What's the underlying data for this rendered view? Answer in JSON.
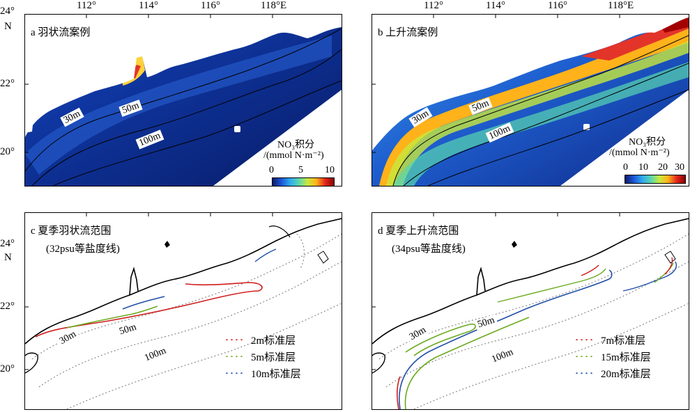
{
  "lon_ticks": [
    "112°",
    "114°",
    "116°",
    "118°E"
  ],
  "lat_ticks": [
    "24°",
    "22°",
    "20°"
  ],
  "north_label": "N",
  "panels": {
    "a": {
      "title": "a  羽状流案例",
      "cbar_title_1": "NO₃积分",
      "cbar_title_2": "/(mmol N·m⁻²)",
      "cbar_ticks": [
        "0",
        "5",
        "10"
      ],
      "contours": [
        "30m",
        "50m",
        "100m"
      ]
    },
    "b": {
      "title": "b  上升流案例",
      "cbar_title_1": "NO₃积分",
      "cbar_title_2": "/(mmol N·m⁻²)",
      "cbar_ticks": [
        "0",
        "10",
        "20",
        "30"
      ],
      "contours": [
        "30m",
        "50m",
        "100m"
      ]
    },
    "c": {
      "title": "c  夏季羽状流范围",
      "subtitle": "(32psu等盐度线)",
      "contours": [
        "30m",
        "50m",
        "100m"
      ],
      "legend": [
        {
          "label": "2m标准层",
          "color": "#d01c1c"
        },
        {
          "label": "5m标准层",
          "color": "#6aaa1e"
        },
        {
          "label": "10m标准层",
          "color": "#1f4ea8"
        }
      ]
    },
    "d": {
      "title": "d  夏季上升流范围",
      "subtitle": "(34psu等盐度线)",
      "contours": [
        "30m",
        "50m",
        "100m"
      ],
      "legend": [
        {
          "label": "7m标准层",
          "color": "#d01c1c"
        },
        {
          "label": "15m标准层",
          "color": "#6aaa1e"
        },
        {
          "label": "20m标准层",
          "color": "#1f4ea8"
        }
      ]
    }
  },
  "colors": {
    "deep": "#0a1f6e",
    "shelf": "#1446b8",
    "plume": "#ffd23a",
    "upwelling": "#e3342a",
    "land": "#ffffff",
    "isobath": "#8a8a8a"
  },
  "colormap": [
    "#0b1a6b",
    "#1c55d6",
    "#2fa8ef",
    "#58d6b0",
    "#c8e83c",
    "#ffb21a",
    "#e3281c",
    "#8a0000"
  ]
}
